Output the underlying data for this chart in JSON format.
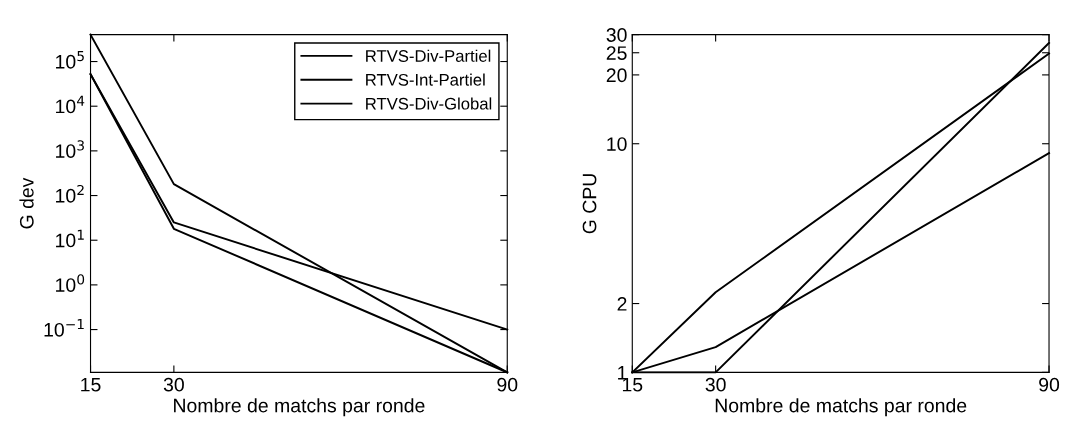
{
  "chart_data": [
    {
      "type": "line",
      "xlabel": "Nombre de matchs par ronde",
      "ylabel": "G dev",
      "log": "y",
      "legend": "top right",
      "line_style": "solid",
      "grid": false,
      "xlim": [
        15,
        90
      ],
      "xticks": [
        15,
        30,
        90
      ],
      "ylim": [
        0.011,
        400000
      ],
      "yticks": [
        {
          "value": 0.1,
          "label": "10$^{−1}$"
        },
        {
          "value": 1,
          "label": "10$^{0}$"
        },
        {
          "value": 10,
          "label": "10$^{1}$"
        },
        {
          "value": 100,
          "label": "10$^{2}$"
        },
        {
          "value": 1000,
          "label": "10$^{3}$"
        },
        {
          "value": 10000,
          "label": "10$^{4}$"
        },
        {
          "value": 100000,
          "label": "10$^{5}$"
        }
      ],
      "x": [
        15,
        30,
        90
      ],
      "series": [
        {
          "name": "RTVS-Div-Partiel",
          "color": "#000000",
          "values": [
            400000,
            180,
            0.011
          ]
        },
        {
          "name": "RTVS-Int-Partiel",
          "color": "#000000",
          "values": [
            52000,
            25,
            0.1
          ]
        },
        {
          "name": "RTVS-Div-Global",
          "color": "#000000",
          "values": [
            52000,
            18,
            0.011
          ]
        }
      ]
    },
    {
      "type": "line",
      "xlabel": "Nombre de matchs par ronde",
      "ylabel": "G CPU",
      "log": "y",
      "line_style": "solid",
      "grid": false,
      "xlim": [
        15,
        90
      ],
      "xticks": [
        15,
        30,
        90
      ],
      "ylim": [
        1,
        30
      ],
      "yticks": [
        1,
        2,
        10,
        20,
        25,
        30
      ],
      "x": [
        15,
        30,
        90
      ],
      "series": [
        {
          "color": "#000000",
          "values": [
            1,
            2.24,
            24.8
          ]
        },
        {
          "color": "#000000",
          "values": [
            1,
            1.29,
            9.1
          ]
        },
        {
          "color": "#000000",
          "values": [
            1,
            1,
            27.6
          ]
        }
      ]
    }
  ]
}
